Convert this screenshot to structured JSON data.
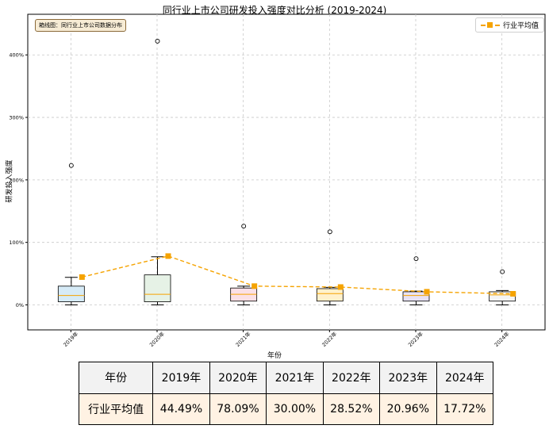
{
  "chart_data": {
    "type": "box",
    "title": "同行业上市公司研发投入强度对比分析 (2019-2024)",
    "xlabel": "年份",
    "ylabel": "研发投入强度",
    "annotation": "箱线图：同行业上市公司数据分布",
    "categories": [
      "2019年",
      "2020年",
      "2021年",
      "2022年",
      "2023年",
      "2024年"
    ],
    "y_ticks": [
      "0%",
      "100%",
      "200%",
      "300%",
      "400%"
    ],
    "ylim": [
      -40,
      465
    ],
    "grid": true,
    "legend_placement": "top-right",
    "boxes": [
      {
        "category": "2019年",
        "whisker_low": 0,
        "q1": 5,
        "median": 15,
        "q3": 30,
        "whisker_high": 44,
        "outliers": [
          223
        ],
        "color": "#d6ebf7"
      },
      {
        "category": "2020年",
        "whisker_low": 0,
        "q1": 5,
        "median": 17,
        "q3": 48,
        "whisker_high": 77,
        "outliers": [
          422
        ],
        "color": "#e6f2e6"
      },
      {
        "category": "2021年",
        "whisker_low": 0,
        "q1": 6,
        "median": 17,
        "q3": 27,
        "whisker_high": 30,
        "outliers": [
          126
        ],
        "color": "#fbe0e6"
      },
      {
        "category": "2022年",
        "whisker_low": 0,
        "q1": 6,
        "median": 18,
        "q3": 26,
        "whisker_high": 28,
        "outliers": [
          117
        ],
        "color": "#fff1cc"
      },
      {
        "category": "2023年",
        "whisker_low": 0,
        "q1": 6,
        "median": 15,
        "q3": 21,
        "whisker_high": 22,
        "outliers": [
          74
        ],
        "color": "#e8e2f4"
      },
      {
        "category": "2024年",
        "whisker_low": 0,
        "q1": 6,
        "median": 16,
        "q3": 21,
        "whisker_high": 23,
        "outliers": [
          53
        ],
        "color": "#f4f4f4"
      }
    ],
    "series": [
      {
        "name": "行业平均值",
        "values": [
          44.49,
          78.09,
          30.0,
          28.52,
          20.96,
          17.72
        ],
        "color": "#f5a300"
      }
    ],
    "median_color": "#f5a300"
  },
  "table": {
    "header_label": "年份",
    "row_label": "行业平均值",
    "years": [
      "2019年",
      "2020年",
      "2021年",
      "2022年",
      "2023年",
      "2024年"
    ],
    "values": [
      "44.49%",
      "78.09%",
      "30.00%",
      "28.52%",
      "20.96%",
      "17.72%"
    ]
  }
}
